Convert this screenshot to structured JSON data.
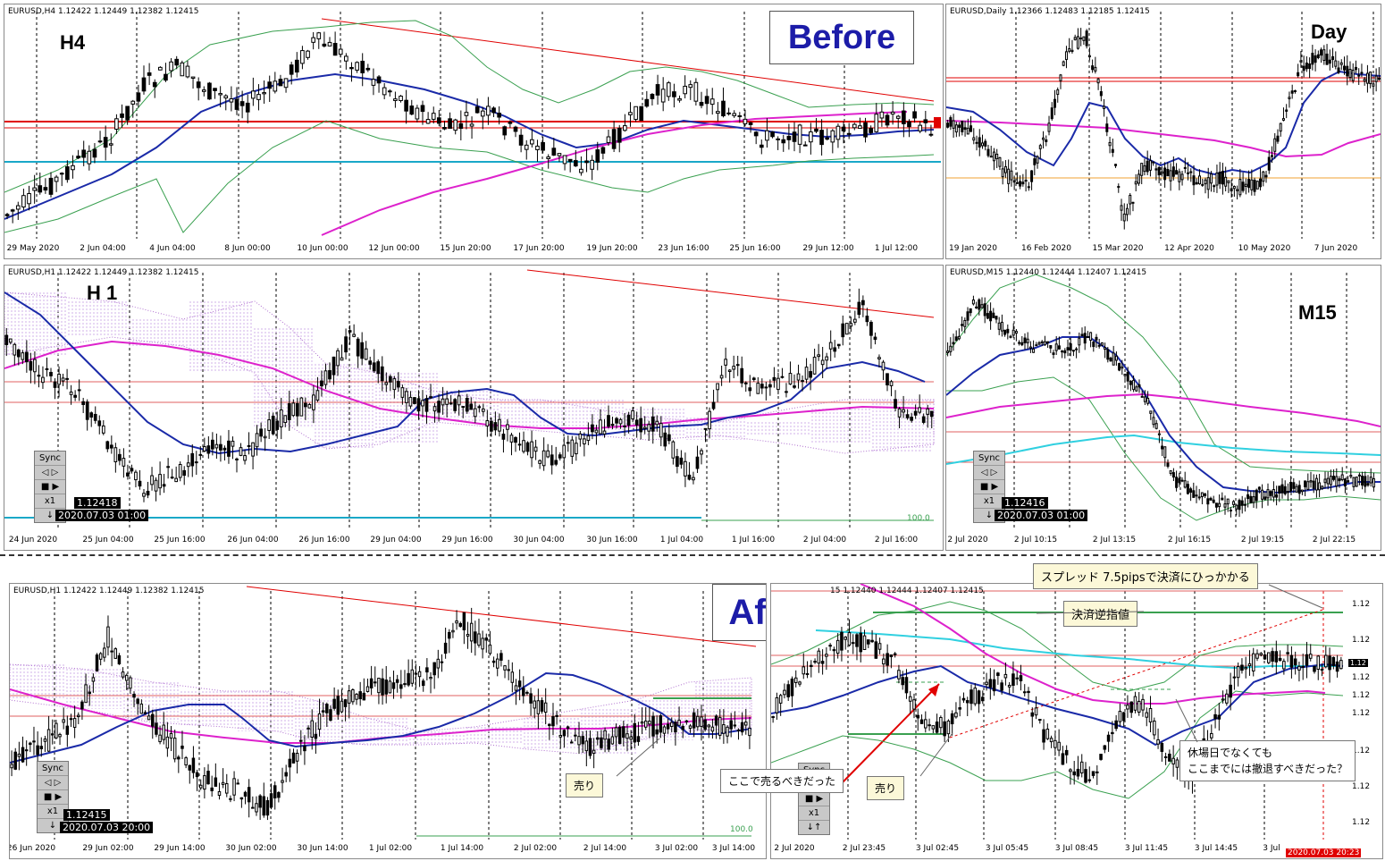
{
  "panels": {
    "h4": {
      "header": "EURUSD,H4  1.12422 1.12449 1.12382 1.12415",
      "label": "H4",
      "badge": "Before",
      "xlabels": [
        "29 May 2020",
        "2 Jun 04:00",
        "4 Jun 04:00",
        "8 Jun 00:00",
        "10 Jun 00:00",
        "12 Jun 00:00",
        "15 Jun 20:00",
        "17 Jun 20:00",
        "19 Jun 20:00",
        "23 Jun 16:00",
        "25 Jun 16:00",
        "29 Jun 12:00",
        "1 Jul 12:00"
      ]
    },
    "daily": {
      "header": "EURUSD,Daily  1.12366 1.12483 1.12185 1.12415",
      "label": "Day",
      "xlabels": [
        "19 Jan 2020",
        "16 Feb 2020",
        "15 Mar 2020",
        "12 Apr 2020",
        "10 May 2020",
        "7 Jun 2020"
      ]
    },
    "h1": {
      "header": "EURUSD,H1  1.12422 1.12449 1.12382 1.12415",
      "label": "H 1",
      "price": "1.12418",
      "time": "2020.07.03 01:00",
      "level_label": "100.0",
      "xlabels": [
        "24 Jun 2020",
        "25 Jun 04:00",
        "25 Jun 16:00",
        "26 Jun 04:00",
        "26 Jun 16:00",
        "29 Jun 04:00",
        "29 Jun 16:00",
        "30 Jun 04:00",
        "30 Jun 16:00",
        "1 Jul 04:00",
        "1 Jul 16:00",
        "2 Jul 04:00",
        "2 Jul 16:00"
      ]
    },
    "m15": {
      "header": "EURUSD,M15  1.12440 1.12444 1.12407 1.12415",
      "label": "M15",
      "price": "1.12416",
      "time": "2020.07.03 01:00",
      "xlabels": [
        "2 Jul 2020",
        "2 Jul 10:15",
        "2 Jul 13:15",
        "2 Jul 16:15",
        "2 Jul 19:15",
        "2 Jul 22:15"
      ]
    },
    "after_h1": {
      "header": "EURUSD,H1  1.12422 1.12449 1.12382 1.12415",
      "badge": "After",
      "price": "1.12415",
      "time": "2020.07.03 20:00",
      "level_label": "100.0",
      "callout_sell": "売り",
      "xlabels": [
        "26 Jun 2020",
        "29 Jun 02:00",
        "29 Jun 14:00",
        "30 Jun 02:00",
        "30 Jun 14:00",
        "1 Jul 02:00",
        "1 Jul 14:00",
        "2 Jul 02:00",
        "2 Jul 14:00",
        "3 Jul 02:00",
        "3 Jul 14:00"
      ]
    },
    "after_m15": {
      "header": "15  1.12440 1.12444 1.12407 1.12415",
      "time": "2020.07.03 20:23",
      "price_tag": "1.12",
      "xlabels": [
        "2 Jul 2020",
        "2 Jul 23:45",
        "3 Jul 02:45",
        "3 Jul 05:45",
        "3 Jul 08:45",
        "3 Jul 11:45",
        "3 Jul 14:45",
        "3 Jul"
      ],
      "yticks": [
        "1.12",
        "1.12",
        "1.12",
        "1.12",
        "1.12",
        "1.12",
        "1.12",
        "1.12"
      ],
      "callouts": {
        "spread": "スプレッド 7.5pipsで決済にひっかかる",
        "stop": "決済逆指値",
        "should_sell": "ここで売るべきだった",
        "sell": "売り",
        "retreat_line1": "休場日でなくても",
        "retreat_line2": "ここまでには撤退すべきだった？"
      }
    }
  },
  "sync": {
    "title": "Sync",
    "nav": "◁ ▷",
    "play": "■ ▶",
    "scale": "x1",
    "arrows": "↓",
    "arrows2": "↓↑"
  }
}
